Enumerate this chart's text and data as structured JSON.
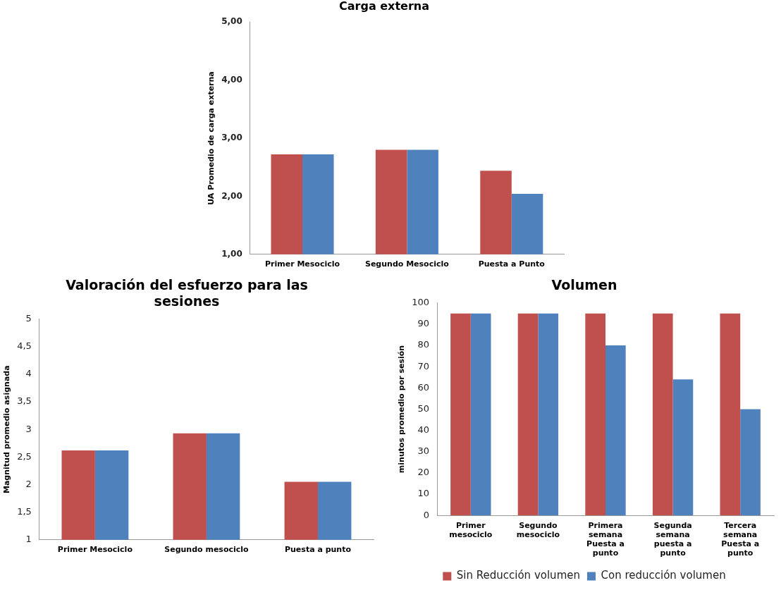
{
  "chart_data": [
    {
      "type": "bar",
      "title": "Carga externa",
      "ylabel": "UA Promedio de carga externa",
      "categories": [
        "Primer Mesociclo",
        "Segundo Mesociclo",
        "Puesta a Punto"
      ],
      "series": [
        {
          "color": "#c0504d",
          "values": [
            2.72,
            2.8,
            2.44
          ]
        },
        {
          "color": "#4f81bd",
          "values": [
            2.72,
            2.8,
            2.04
          ]
        }
      ],
      "ylim": [
        1,
        5
      ],
      "yticks": [
        {
          "value": 1,
          "label": "1,00"
        },
        {
          "value": 2,
          "label": "2,00"
        },
        {
          "value": 3,
          "label": "3,00"
        },
        {
          "value": 4,
          "label": "4,00"
        },
        {
          "value": 5,
          "label": "5,00"
        }
      ],
      "grid": false,
      "legend": false
    },
    {
      "type": "bar",
      "title": "Valoración del esfuerzo para las\nsesiones",
      "ylabel": "Magnitud promedio asignada",
      "categories": [
        "Primer Mesociclo",
        "Segundo mesociclo",
        "Puesta a punto"
      ],
      "series": [
        {
          "color": "#c0504d",
          "values": [
            2.62,
            2.93,
            2.05
          ]
        },
        {
          "color": "#4f81bd",
          "values": [
            2.62,
            2.93,
            2.05
          ]
        }
      ],
      "ylim": [
        1,
        5
      ],
      "yticks": [
        1,
        {
          "value": 1.5,
          "label": "1,5"
        },
        2,
        {
          "value": 2.5,
          "label": "2,5"
        },
        3,
        {
          "value": 3.5,
          "label": "3,5"
        },
        4,
        {
          "value": 4.5,
          "label": "4,5"
        },
        5
      ],
      "grid": false,
      "legend": false
    },
    {
      "type": "bar",
      "title": "Volumen",
      "ylabel": "minutos promedio por sesión",
      "categories": [
        "Primer\nmesociclo",
        "Segundo\nmesociclo",
        "Primera\nsemana\nPuesta a\npunto",
        "Segunda\nsemana\npuesta a\npunto",
        "Tercera\nsemana\nPuesta a\npunto"
      ],
      "series": [
        {
          "name": "Sin Reducción volumen",
          "color": "#c0504d",
          "values": [
            95,
            95,
            95,
            95,
            95
          ]
        },
        {
          "name": "Con reducción volumen",
          "color": "#4f81bd",
          "values": [
            95,
            95,
            80,
            64,
            50
          ]
        }
      ],
      "ylim": [
        0,
        100
      ],
      "yticks": [
        0,
        10,
        20,
        30,
        40,
        50,
        60,
        70,
        80,
        90,
        100
      ],
      "grid": false,
      "legend": "bottom"
    }
  ]
}
